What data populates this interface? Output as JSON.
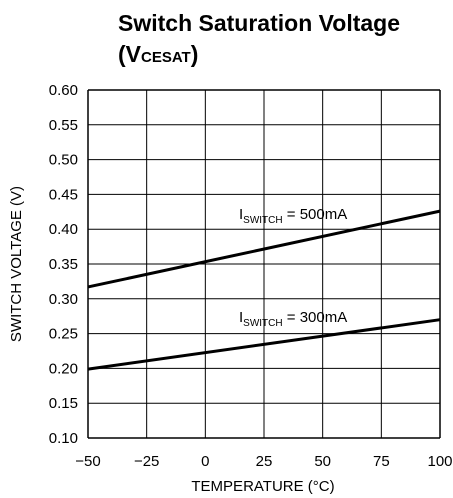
{
  "chart_data": {
    "type": "line",
    "title_line1": "Switch Saturation Voltage",
    "title_line2_prefix": "(V",
    "title_line2_sub": "CESAT",
    "title_line2_suffix": ")",
    "xlabel": "TEMPERATURE (°C)",
    "ylabel": "SWITCH VOLTAGE (V)",
    "xlim": [
      -50,
      100
    ],
    "ylim": [
      0.1,
      0.6
    ],
    "xticks": [
      "−50",
      "−25",
      "0",
      "25",
      "50",
      "75",
      "100"
    ],
    "yticks": [
      "0.10",
      "0.15",
      "0.20",
      "0.25",
      "0.30",
      "0.35",
      "0.40",
      "0.45",
      "0.50",
      "0.55",
      "0.60"
    ],
    "grid": true,
    "series": [
      {
        "label_prefix": "I",
        "label_sub": "SWITCH",
        "label_suffix": " = 500mA",
        "x": [
          -50,
          100
        ],
        "y": [
          0.317,
          0.426
        ]
      },
      {
        "label_prefix": "I",
        "label_sub": "SWITCH",
        "label_suffix": " = 300mA",
        "x": [
          -50,
          100
        ],
        "y": [
          0.199,
          0.27
        ]
      }
    ]
  }
}
